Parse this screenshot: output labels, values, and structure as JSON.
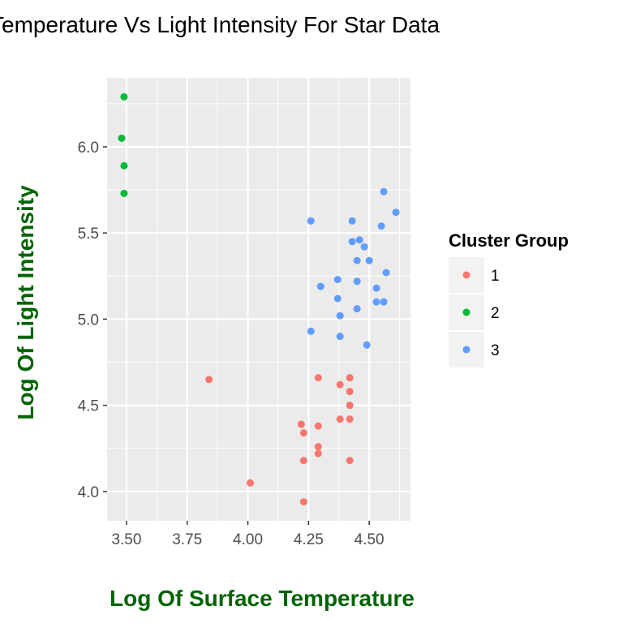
{
  "chart_data": {
    "type": "scatter",
    "title": "Temperature Vs Light Intensity For Star Data",
    "xlabel": "Log Of Surface Temperature",
    "ylabel": "Log Of Light Intensity",
    "xlim": [
      3.42,
      4.67
    ],
    "ylim": [
      3.83,
      6.4
    ],
    "x_ticks": [
      "3.50",
      "3.75",
      "4.00",
      "4.25",
      "4.50"
    ],
    "x_tick_values": [
      3.5,
      3.75,
      4.0,
      4.25,
      4.5
    ],
    "y_ticks": [
      "4.0",
      "4.5",
      "5.0",
      "5.5",
      "6.0"
    ],
    "y_tick_values": [
      4.0,
      4.5,
      5.0,
      5.5,
      6.0
    ],
    "grid": true,
    "legend": {
      "title": "Cluster Group",
      "position": "right"
    },
    "series": [
      {
        "name": "1",
        "color": "#F8766D",
        "points": [
          [
            3.84,
            4.65
          ],
          [
            4.01,
            4.05
          ],
          [
            4.22,
            4.39
          ],
          [
            4.23,
            4.34
          ],
          [
            4.23,
            4.18
          ],
          [
            4.23,
            3.94
          ],
          [
            4.29,
            4.66
          ],
          [
            4.29,
            4.38
          ],
          [
            4.29,
            4.26
          ],
          [
            4.29,
            4.22
          ],
          [
            4.38,
            4.62
          ],
          [
            4.38,
            4.42
          ],
          [
            4.42,
            4.66
          ],
          [
            4.42,
            4.58
          ],
          [
            4.42,
            4.5
          ],
          [
            4.42,
            4.42
          ],
          [
            4.42,
            4.18
          ]
        ]
      },
      {
        "name": "2",
        "color": "#00BA38",
        "points": [
          [
            3.49,
            6.29
          ],
          [
            3.48,
            6.05
          ],
          [
            3.49,
            5.89
          ],
          [
            3.49,
            5.73
          ]
        ]
      },
      {
        "name": "3",
        "color": "#619CFF",
        "points": [
          [
            4.26,
            5.57
          ],
          [
            4.26,
            4.93
          ],
          [
            4.3,
            5.19
          ],
          [
            4.37,
            5.23
          ],
          [
            4.37,
            5.12
          ],
          [
            4.38,
            5.02
          ],
          [
            4.38,
            4.9
          ],
          [
            4.43,
            5.57
          ],
          [
            4.43,
            5.45
          ],
          [
            4.45,
            5.34
          ],
          [
            4.45,
            5.22
          ],
          [
            4.45,
            5.06
          ],
          [
            4.46,
            5.46
          ],
          [
            4.48,
            5.42
          ],
          [
            4.49,
            4.85
          ],
          [
            4.5,
            5.34
          ],
          [
            4.53,
            5.18
          ],
          [
            4.53,
            5.1
          ],
          [
            4.55,
            5.54
          ],
          [
            4.56,
            5.74
          ],
          [
            4.56,
            5.1
          ],
          [
            4.57,
            5.27
          ],
          [
            4.61,
            5.62
          ]
        ]
      }
    ]
  }
}
